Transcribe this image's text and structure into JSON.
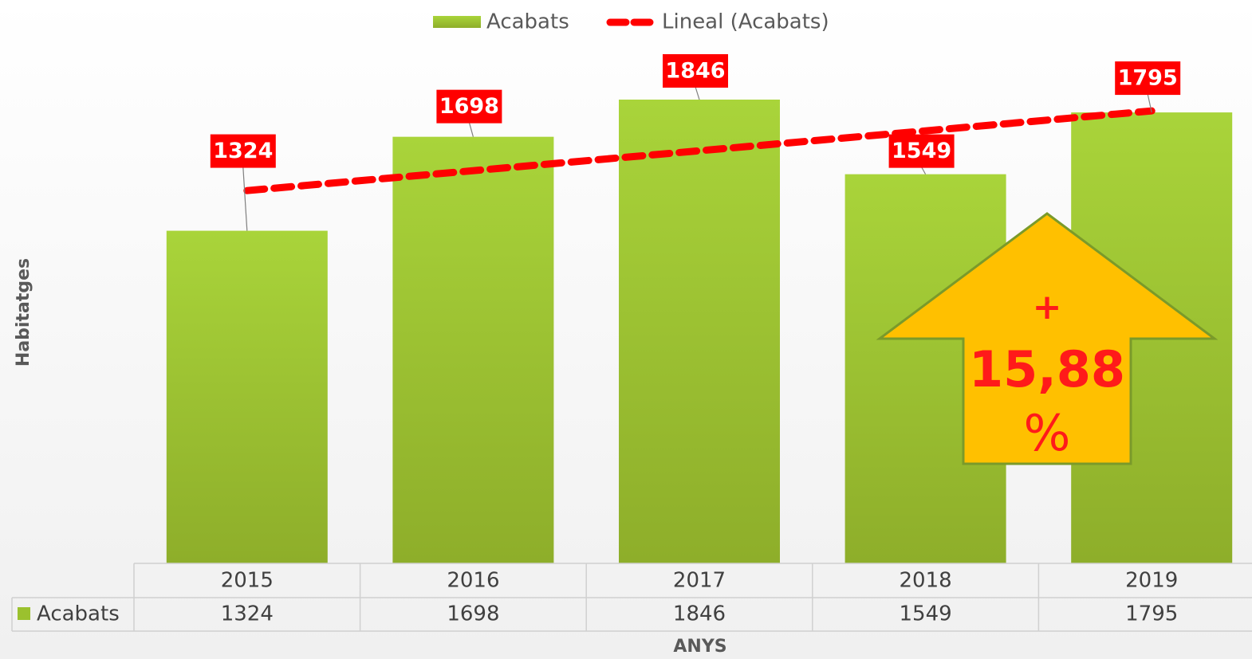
{
  "chart_data": {
    "type": "bar",
    "categories": [
      "2015",
      "2016",
      "2017",
      "2018",
      "2019"
    ],
    "series": [
      {
        "name": "Acabats",
        "color": "#9bc12e",
        "values": [
          1324,
          1698,
          1846,
          1549,
          1795
        ]
      }
    ],
    "trendline": {
      "name": "Lineal (Acabats)",
      "color": "#ff0000"
    },
    "y_label": "Habitatges",
    "x_label": "ANYS",
    "annotation": [
      "+",
      "15,88",
      "%"
    ]
  }
}
